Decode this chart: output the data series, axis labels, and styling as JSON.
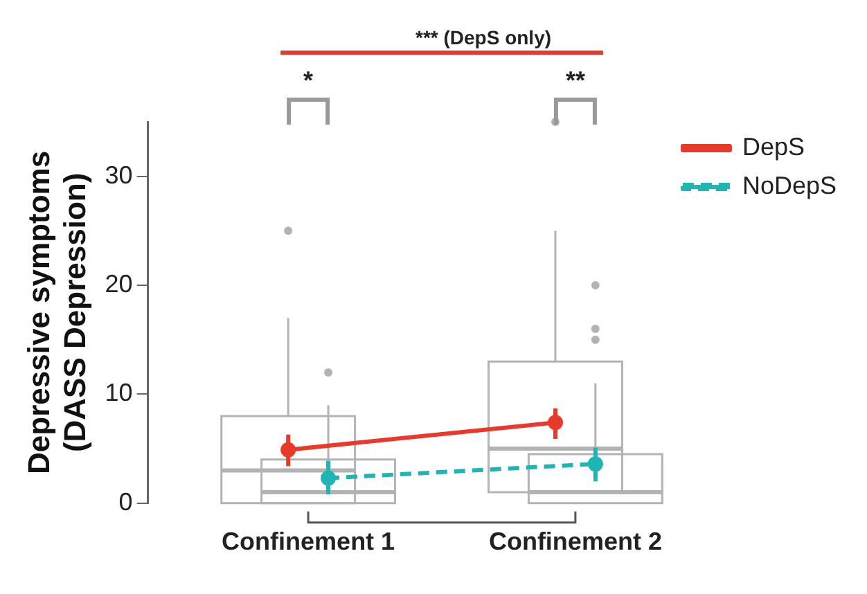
{
  "chart_data": {
    "type": "box",
    "ylabel": "Depressive symptoms (DASS Depression)",
    "categories": [
      "Confinement 1",
      "Confinement 2"
    ],
    "ylim": [
      0,
      35
    ],
    "yticks": [
      0,
      10,
      20,
      30
    ],
    "grid": false,
    "legend": "top right",
    "series": [
      {
        "color": "#b3b3b3",
        "boxes": [
          {
            "low": 0,
            "q1": 0,
            "median": 3,
            "q3": 8,
            "high": 17,
            "outliers": [
              25
            ]
          },
          {
            "low": 1,
            "q1": 1,
            "median": 5,
            "q3": 13,
            "high": 25,
            "outliers": [
              35
            ]
          }
        ]
      },
      {
        "color": "#b3b3b3",
        "boxes": [
          {
            "low": 0,
            "q1": 0,
            "median": 1,
            "q3": 4,
            "high": 9,
            "outliers": [
              12
            ]
          },
          {
            "low": 0,
            "q1": 0,
            "median": 1,
            "q3": 4.5,
            "high": 11,
            "outliers": [
              15,
              16,
              20
            ]
          }
        ]
      },
      {
        "type": "line",
        "name": "DepS",
        "color": "#e8392a",
        "values": [
          4.9,
          7.4
        ],
        "errors": [
          [
            3.4,
            6.3
          ],
          [
            5.9,
            8.7
          ]
        ],
        "marker": "circle",
        "line_style": "solid"
      },
      {
        "type": "line",
        "name": "NoDepS",
        "color": "#1fb5b5",
        "values": [
          2.3,
          3.6
        ],
        "errors": [
          [
            0.8,
            3.9
          ],
          [
            2.0,
            5.1
          ]
        ],
        "marker": "circle",
        "line_style": "dashed"
      }
    ],
    "annotations": [
      "*",
      "**",
      "*** (DepS only)"
    ]
  }
}
